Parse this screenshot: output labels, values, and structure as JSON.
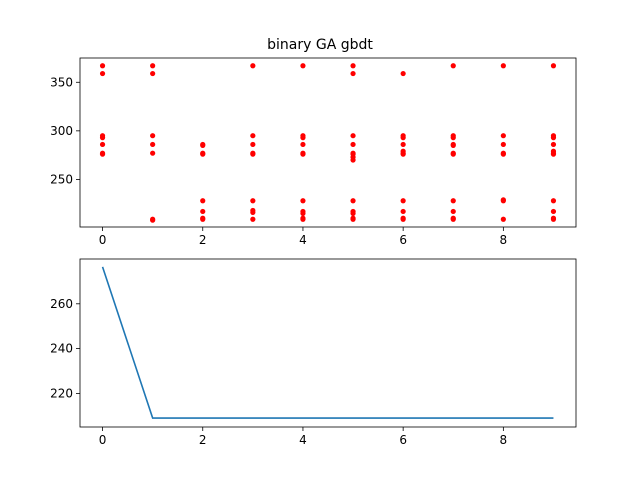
{
  "chart_data": [
    {
      "type": "scatter",
      "title": "binary GA gbdt",
      "xlabel": "",
      "ylabel": "",
      "xlim": [
        -0.45,
        9.45
      ],
      "ylim": [
        201,
        375
      ],
      "xticks": [
        0,
        2,
        4,
        6,
        8
      ],
      "yticks": [
        250,
        300,
        350
      ],
      "grid": false,
      "marker_color": "#ff0000",
      "points": [
        [
          0,
          367
        ],
        [
          0,
          359
        ],
        [
          0,
          295
        ],
        [
          0,
          293
        ],
        [
          0,
          286
        ],
        [
          0,
          277
        ],
        [
          0,
          276
        ],
        [
          1,
          367
        ],
        [
          1,
          359
        ],
        [
          1,
          295
        ],
        [
          1,
          286
        ],
        [
          1,
          277
        ],
        [
          1,
          209
        ],
        [
          1,
          208
        ],
        [
          2,
          286
        ],
        [
          2,
          285
        ],
        [
          2,
          277
        ],
        [
          2,
          276
        ],
        [
          2,
          228
        ],
        [
          2,
          217
        ],
        [
          2,
          210
        ],
        [
          2,
          209
        ],
        [
          3,
          367
        ],
        [
          3,
          295
        ],
        [
          3,
          286
        ],
        [
          3,
          277
        ],
        [
          3,
          276
        ],
        [
          3,
          228
        ],
        [
          3,
          218
        ],
        [
          3,
          216
        ],
        [
          3,
          209
        ],
        [
          4,
          367
        ],
        [
          4,
          295
        ],
        [
          4,
          293
        ],
        [
          4,
          286
        ],
        [
          4,
          277
        ],
        [
          4,
          276
        ],
        [
          4,
          228
        ],
        [
          4,
          217
        ],
        [
          4,
          215
        ],
        [
          4,
          210
        ],
        [
          4,
          209
        ],
        [
          5,
          367
        ],
        [
          5,
          359
        ],
        [
          5,
          295
        ],
        [
          5,
          286
        ],
        [
          5,
          277
        ],
        [
          5,
          276
        ],
        [
          5,
          273
        ],
        [
          5,
          270
        ],
        [
          5,
          228
        ],
        [
          5,
          217
        ],
        [
          5,
          215
        ],
        [
          5,
          210
        ],
        [
          5,
          209
        ],
        [
          6,
          359
        ],
        [
          6,
          295
        ],
        [
          6,
          293
        ],
        [
          6,
          286
        ],
        [
          6,
          279
        ],
        [
          6,
          277
        ],
        [
          6,
          276
        ],
        [
          6,
          228
        ],
        [
          6,
          217
        ],
        [
          6,
          210
        ],
        [
          6,
          209
        ],
        [
          7,
          367
        ],
        [
          7,
          295
        ],
        [
          7,
          293
        ],
        [
          7,
          286
        ],
        [
          7,
          285
        ],
        [
          7,
          277
        ],
        [
          7,
          276
        ],
        [
          7,
          228
        ],
        [
          7,
          217
        ],
        [
          7,
          210
        ],
        [
          7,
          209
        ],
        [
          8,
          367
        ],
        [
          8,
          295
        ],
        [
          8,
          286
        ],
        [
          8,
          277
        ],
        [
          8,
          276
        ],
        [
          8,
          229
        ],
        [
          8,
          228
        ],
        [
          8,
          209
        ],
        [
          9,
          367
        ],
        [
          9,
          295
        ],
        [
          9,
          293
        ],
        [
          9,
          286
        ],
        [
          9,
          279
        ],
        [
          9,
          277
        ],
        [
          9,
          276
        ],
        [
          9,
          228
        ],
        [
          9,
          217
        ],
        [
          9,
          210
        ],
        [
          9,
          209
        ]
      ]
    },
    {
      "type": "line",
      "title": "",
      "xlabel": "",
      "ylabel": "",
      "xlim": [
        -0.45,
        9.45
      ],
      "ylim": [
        205,
        280
      ],
      "xticks": [
        0,
        2,
        4,
        6,
        8
      ],
      "yticks": [
        220,
        240,
        260
      ],
      "grid": false,
      "line_color": "#1f77b4",
      "x": [
        0,
        1,
        2,
        3,
        4,
        5,
        6,
        7,
        8,
        9
      ],
      "y": [
        276.5,
        209,
        209,
        209,
        209,
        209,
        209,
        209,
        209,
        209
      ]
    }
  ]
}
